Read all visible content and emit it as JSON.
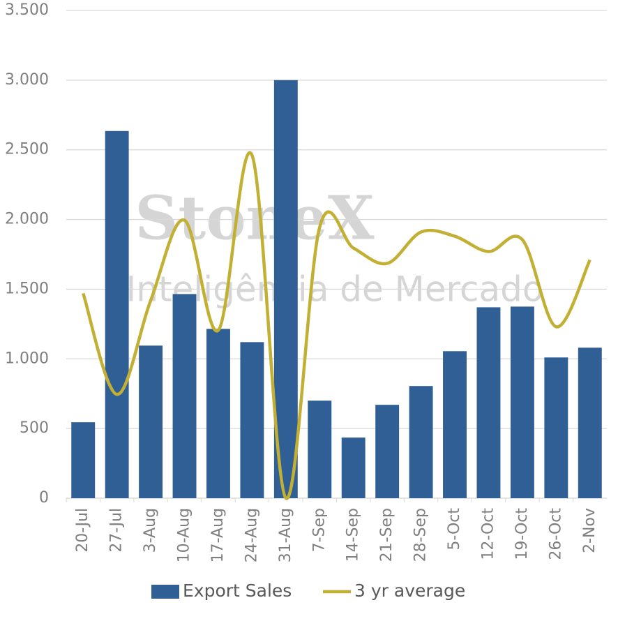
{
  "chart_data": {
    "type": "bar-line",
    "categories": [
      "20-Jul",
      "27-Jul",
      "3-Aug",
      "10-Aug",
      "17-Aug",
      "24-Aug",
      "31-Aug",
      "7-Sep",
      "14-Sep",
      "21-Sep",
      "28-Sep",
      "5-Oct",
      "12-Oct",
      "19-Oct",
      "26-Oct",
      "2-Nov"
    ],
    "series": [
      {
        "name": "Export Sales",
        "type": "bar",
        "color": "#2f5f94",
        "values": [
          545,
          2635,
          1095,
          1465,
          1215,
          1120,
          3000,
          700,
          435,
          670,
          805,
          1055,
          1370,
          1375,
          1010,
          1080
        ]
      },
      {
        "name": "3 yr average",
        "type": "line",
        "color": "#c2b034",
        "values": [
          1470,
          745,
          1420,
          1995,
          1205,
          2460,
          0,
          1945,
          1795,
          1685,
          1910,
          1880,
          1770,
          1855,
          1230,
          1710
        ]
      }
    ],
    "ylim": [
      0,
      3500
    ],
    "yticks": [
      0,
      500,
      {
        "value": 1000,
        "label": "1.000"
      },
      {
        "value": 1500,
        "label": "1.500"
      },
      {
        "value": 2000,
        "label": "2.000"
      },
      {
        "value": 2500,
        "label": "2.500"
      },
      {
        "value": 3000,
        "label": "3.000"
      },
      {
        "value": 3500,
        "label": "3.500"
      }
    ],
    "grid": true,
    "legend": "bottom",
    "annotations": [
      "StoneX",
      "Inteligência de Mercado"
    ]
  }
}
